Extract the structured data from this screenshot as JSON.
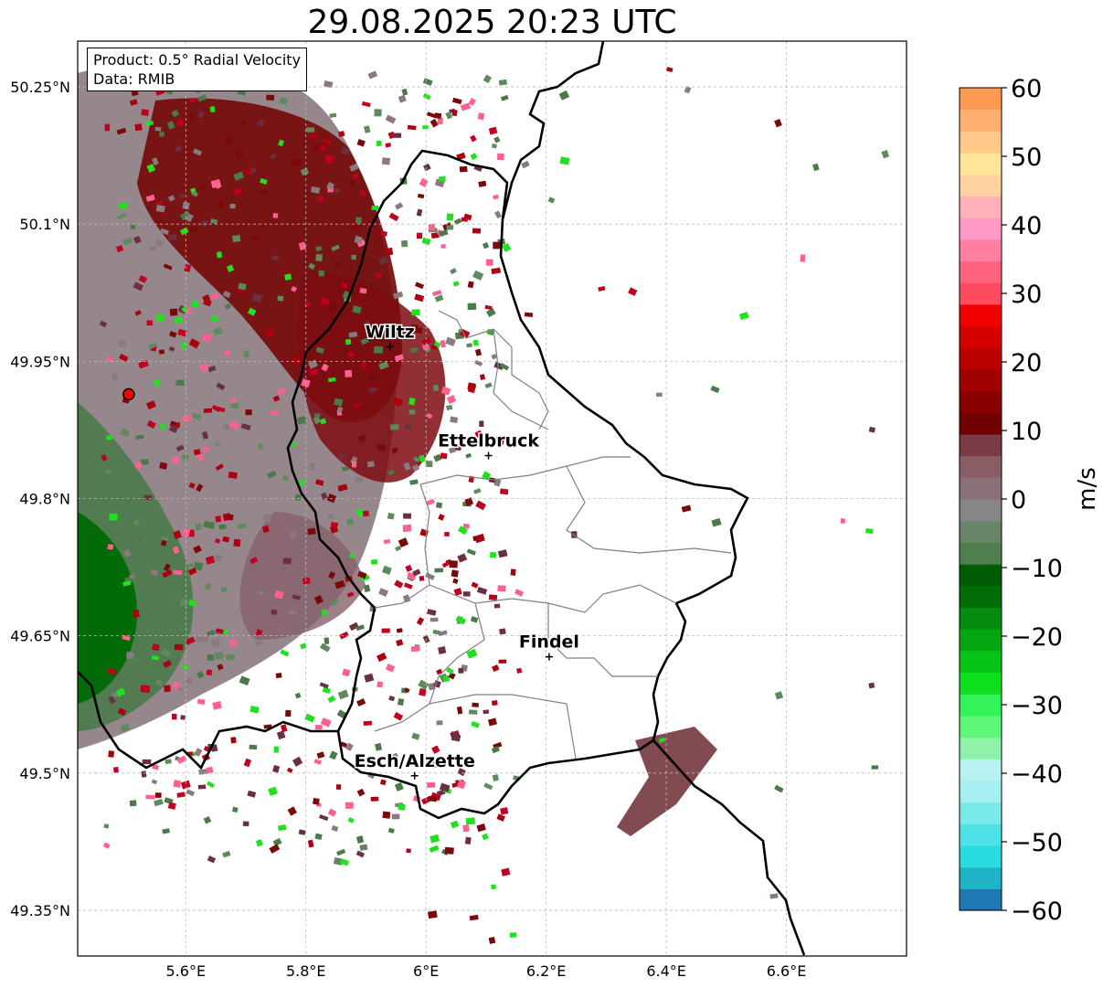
{
  "title": "29.08.2025 20:23 UTC",
  "product_box": {
    "line1": "Product: 0.5° Radial Velocity",
    "line2": "Data: RMIB"
  },
  "lat_ticks": [
    {
      "value": 50.25,
      "label": "50.25°N"
    },
    {
      "value": 50.1,
      "label": "50.1°N"
    },
    {
      "value": 49.95,
      "label": "49.95°N"
    },
    {
      "value": 49.8,
      "label": "49.8°N"
    },
    {
      "value": 49.65,
      "label": "49.65°N"
    },
    {
      "value": 49.5,
      "label": "49.5°N"
    },
    {
      "value": 49.35,
      "label": "49.35°N"
    }
  ],
  "lon_ticks": [
    {
      "value": 5.6,
      "label": "5.6°E"
    },
    {
      "value": 5.8,
      "label": "5.8°E"
    },
    {
      "value": 6.0,
      "label": "6°E"
    },
    {
      "value": 6.2,
      "label": "6.2°E"
    },
    {
      "value": 6.4,
      "label": "6.4°E"
    },
    {
      "value": 6.6,
      "label": "6.6°E"
    }
  ],
  "extent": {
    "lon_min": 5.42,
    "lon_max": 6.8,
    "lat_min": 49.3,
    "lat_max": 50.3
  },
  "cities": [
    {
      "name": "Wiltz",
      "lon": 5.94,
      "lat": 49.966
    },
    {
      "name": "Ettelbruck",
      "lon": 6.104,
      "lat": 49.847
    },
    {
      "name": "Findel",
      "lon": 6.205,
      "lat": 49.627
    },
    {
      "name": "Esch/Alzette",
      "lon": 5.981,
      "lat": 49.497
    }
  ],
  "radar_site": {
    "lon": 5.505,
    "lat": 49.914
  },
  "colorbar": {
    "label": "m/s",
    "vmin": -60,
    "vmax": 60,
    "ticks": [
      {
        "value": 60,
        "label": "60"
      },
      {
        "value": 50,
        "label": "50"
      },
      {
        "value": 40,
        "label": "40"
      },
      {
        "value": 30,
        "label": "30"
      },
      {
        "value": 20,
        "label": "20"
      },
      {
        "value": 10,
        "label": "10"
      },
      {
        "value": 0,
        "label": "0"
      },
      {
        "value": -10,
        "label": "−10"
      },
      {
        "value": -20,
        "label": "−20"
      },
      {
        "value": -30,
        "label": "−30"
      },
      {
        "value": -40,
        "label": "−40"
      },
      {
        "value": -50,
        "label": "−50"
      },
      {
        "value": -60,
        "label": "−60"
      }
    ],
    "colors": [
      "#1f77b4",
      "#1fb3c8",
      "#2adbe0",
      "#4de3e6",
      "#7ae9ea",
      "#a6eff0",
      "#b8f2f2",
      "#8ef2a8",
      "#5df77a",
      "#32f35a",
      "#0ee020",
      "#08c418",
      "#06a812",
      "#058c0e",
      "#036e08",
      "#035c05",
      "#4f7f4f",
      "#6a8468",
      "#868686",
      "#8a7079",
      "#8a5c66",
      "#7a3b46",
      "#700000",
      "#880000",
      "#a00000",
      "#bb0000",
      "#d60000",
      "#f00000",
      "#ff4b5f",
      "#ff647e",
      "#ff7fa0",
      "#ff9ac6",
      "#ffb0b8",
      "#ffd2a0",
      "#ffe49a",
      "#ffc98a",
      "#ffb070",
      "#ff9a55"
    ]
  }
}
